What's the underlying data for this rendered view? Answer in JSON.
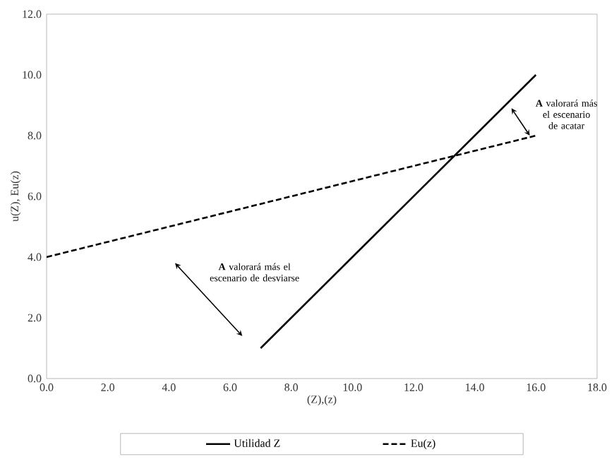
{
  "chart_data": {
    "type": "line",
    "xlabel": "(Z),(z)",
    "ylabel": "u(Z), Eu(z)",
    "series": [
      {
        "name": "Utilidad Z",
        "color": "#000000",
        "x": [
          7,
          16
        ],
        "values": [
          1,
          10
        ],
        "line_style": "solid"
      },
      {
        "name": "Eu(z)",
        "color": "#000000",
        "x": [
          0,
          16
        ],
        "values": [
          4,
          8
        ],
        "line_style": "dashed"
      }
    ],
    "annotations": [
      "**A** valorará más el escenario de desviarse",
      "**A** valorará más el escenario de acatar"
    ],
    "xlim": [
      0,
      18
    ],
    "ylim": [
      0,
      12
    ],
    "xticks": [
      {
        "value": 0,
        "label": "0.0"
      },
      {
        "value": 2,
        "label": "2.0"
      },
      {
        "value": 4,
        "label": "4.0"
      },
      {
        "value": 6,
        "label": "6.0"
      },
      {
        "value": 8,
        "label": "8.0"
      },
      {
        "value": 10,
        "label": "10.0"
      },
      {
        "value": 12,
        "label": "12.0"
      },
      {
        "value": 14,
        "label": "14.0"
      },
      {
        "value": 16,
        "label": "16.0"
      },
      {
        "value": 18,
        "label": "18.0"
      }
    ],
    "yticks": [
      {
        "value": 0,
        "label": "0.0"
      },
      {
        "value": 2,
        "label": "2.0"
      },
      {
        "value": 4,
        "label": "4.0"
      },
      {
        "value": 6,
        "label": "6.0"
      },
      {
        "value": 8,
        "label": "8.0"
      },
      {
        "value": 10,
        "label": "10.0"
      },
      {
        "value": 12,
        "label": "12.0"
      }
    ],
    "grid": false,
    "legend": "bottom",
    "marker": "none"
  }
}
